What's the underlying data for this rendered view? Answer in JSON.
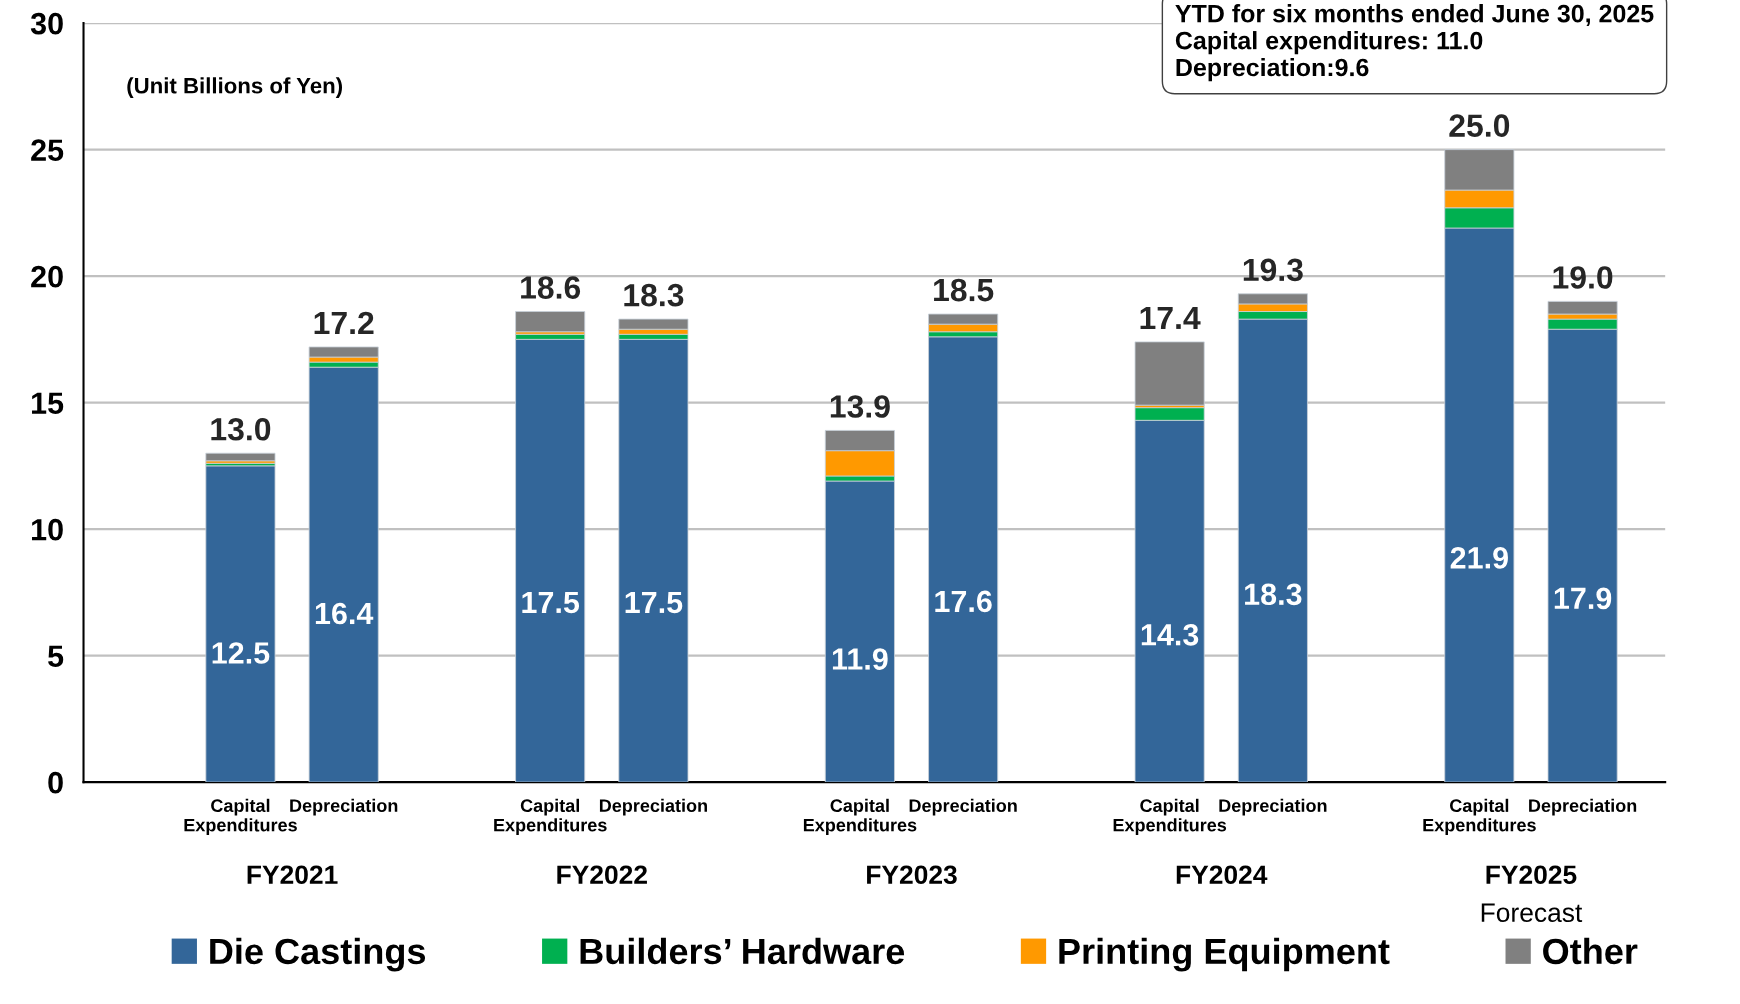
{
  "chart_data": {
    "type": "bar",
    "stacked": true,
    "categories": [
      "Capital\nExpenditures",
      "Depreciation",
      null,
      "Capital\nExpenditures",
      "Depreciation",
      null,
      "Capital\nExpenditures",
      "Depreciation",
      null,
      "Capital\nExpenditures",
      "Depreciation",
      null,
      "Capital\nExpenditures",
      "Depreciation"
    ],
    "series": [
      {
        "name": "Die Castings",
        "color": "#336699",
        "values": [
          12.5,
          16.4,
          null,
          17.5,
          17.5,
          null,
          11.9,
          17.6,
          null,
          14.3,
          18.3,
          null,
          21.9,
          17.9
        ],
        "value_labels": [
          "12.5",
          "16.4",
          null,
          "17.5",
          "17.5",
          null,
          "11.9",
          "17.6",
          null,
          "14.3",
          "18.3",
          null,
          "21.9",
          "17.9"
        ]
      },
      {
        "name": "Builders’ Hardware",
        "color": "#00b050",
        "values": [
          0.1,
          0.2,
          null,
          0.2,
          0.2,
          null,
          0.2,
          0.2,
          null,
          0.5,
          0.3,
          null,
          0.8,
          0.4
        ]
      },
      {
        "name": "Printing Equipment",
        "color": "#ff9900",
        "values": [
          0.1,
          0.2,
          null,
          0.1,
          0.2,
          null,
          1.0,
          0.3,
          null,
          0.1,
          0.3,
          null,
          0.7,
          0.2
        ]
      },
      {
        "name": "Other",
        "color": "#808080",
        "values": [
          0.3,
          0.4,
          null,
          0.8,
          0.4,
          null,
          0.8,
          0.4,
          null,
          2.5,
          0.4,
          null,
          1.6,
          0.5
        ]
      }
    ],
    "totals": [
      "13.0",
      "17.2",
      null,
      "18.6",
      "18.3",
      null,
      "13.9",
      "18.5",
      null,
      "17.4",
      "19.3",
      null,
      "25.0",
      "19.0"
    ],
    "annotations": [
      "(Unit Billions of Yen)",
      "YTD for six months ended June 30, 2025\nCapital expenditures: 11.0\nDepreciation:9.6",
      "FY2021",
      "FY2022",
      "FY2023",
      "FY2024",
      "FY2025\nForecast"
    ],
    "ylim": [
      0,
      30
    ],
    "yticks": [
      0,
      5,
      10,
      15,
      20,
      25,
      30
    ],
    "grid": "y",
    "legend": "bottom"
  }
}
